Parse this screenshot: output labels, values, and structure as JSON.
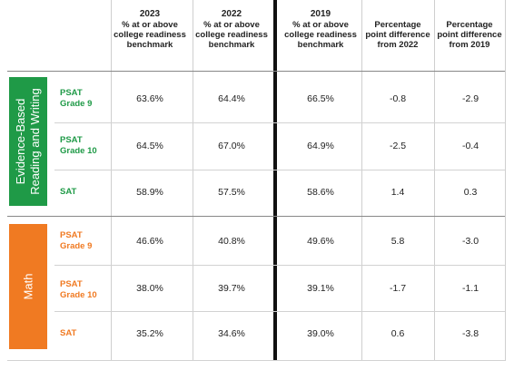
{
  "columns": [
    {
      "year": "2023",
      "subtitle": "% at or above college readiness benchmark"
    },
    {
      "year": "2022",
      "subtitle": "% at or above college readiness benchmark"
    },
    {
      "year": "2019",
      "subtitle": "% at or above college readiness benchmark"
    },
    {
      "year": "",
      "subtitle": "Percentage point difference from 2022"
    },
    {
      "year": "",
      "subtitle": "Percentage point difference from 2019"
    }
  ],
  "groups": [
    {
      "label_line1": "Evidence-Based",
      "label_line2": "Reading and Writing",
      "color": "#1f9a47",
      "rows": [
        {
          "test": "PSAT",
          "grade": "Grade 9",
          "values": [
            "63.6%",
            "64.4%",
            "66.5%",
            "-0.8",
            "-2.9"
          ]
        },
        {
          "test": "PSAT",
          "grade": "Grade 10",
          "values": [
            "64.5%",
            "67.0%",
            "64.9%",
            "-2.5",
            "-0.4"
          ]
        },
        {
          "test": "SAT",
          "grade": "",
          "values": [
            "58.9%",
            "57.5%",
            "58.6%",
            "1.4",
            "0.3"
          ]
        }
      ]
    },
    {
      "label_line1": "Math",
      "label_line2": "",
      "color": "#f07a22",
      "rows": [
        {
          "test": "PSAT",
          "grade": "Grade 9",
          "values": [
            "46.6%",
            "40.8%",
            "49.6%",
            "5.8",
            "-3.0"
          ]
        },
        {
          "test": "PSAT",
          "grade": "Grade 10",
          "values": [
            "38.0%",
            "39.7%",
            "39.1%",
            "-1.7",
            "-1.1"
          ]
        },
        {
          "test": "SAT",
          "grade": "",
          "values": [
            "35.2%",
            "34.6%",
            "39.0%",
            "0.6",
            "-3.8"
          ]
        }
      ]
    }
  ]
}
